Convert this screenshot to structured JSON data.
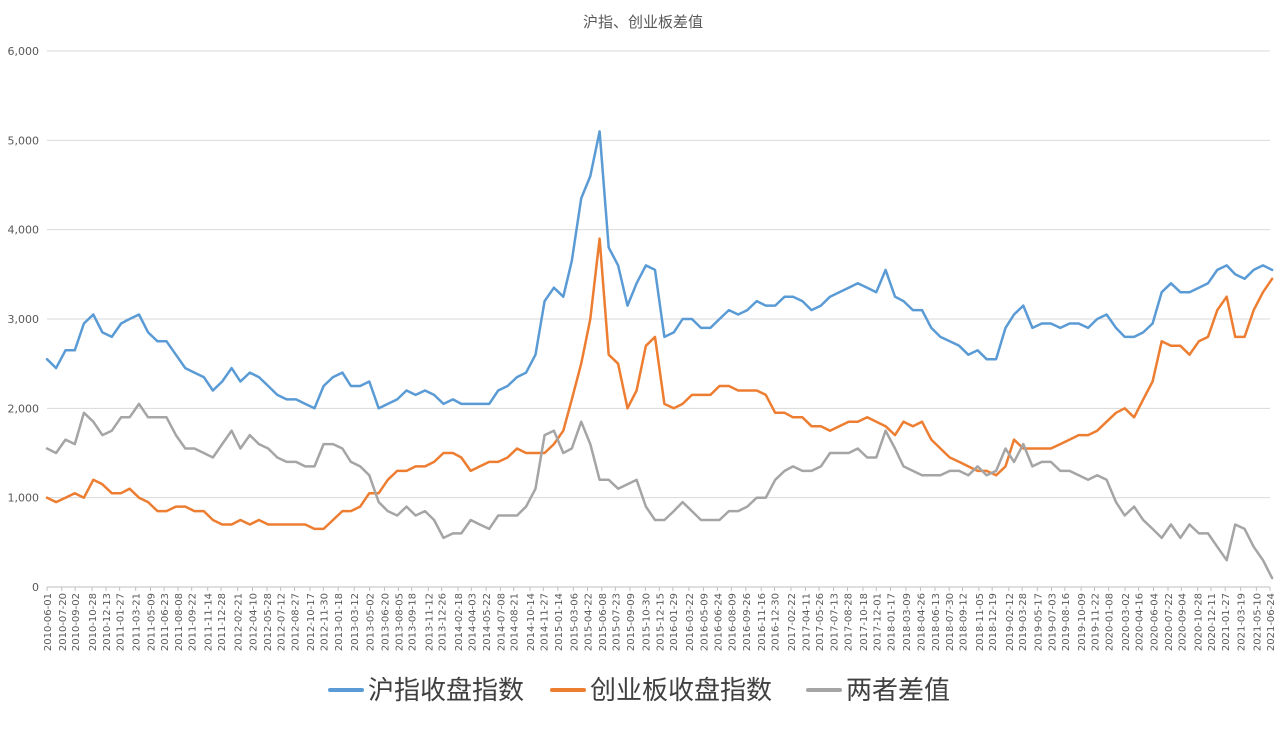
{
  "chart_data": {
    "type": "line",
    "title": "沪指、创业板差值",
    "xlabel": "",
    "ylabel": "",
    "ylim": [
      0,
      6000
    ],
    "yticks": [
      0,
      1000,
      2000,
      3000,
      4000,
      5000,
      6000
    ],
    "ytick_labels": [
      "0",
      "1,000",
      "2,000",
      "3,000",
      "4,000",
      "5,000",
      "6,000"
    ],
    "grid": true,
    "legend_position": "bottom",
    "x_tick_labels": [
      "2010-06-01",
      "2010-07-20",
      "2010-09-02",
      "2010-10-28",
      "2010-12-13",
      "2011-01-27",
      "2011-03-21",
      "2011-05-09",
      "2011-06-23",
      "2011-08-08",
      "2011-09-22",
      "2011-11-14",
      "2011-12-28",
      "2012-02-21",
      "2012-04-10",
      "2012-05-28",
      "2012-07-12",
      "2012-08-27",
      "2012-10-17",
      "2012-11-30",
      "2013-01-18",
      "2013-03-12",
      "2013-05-02",
      "2013-06-20",
      "2013-08-05",
      "2013-09-18",
      "2013-11-12",
      "2013-12-26",
      "2014-02-18",
      "2014-04-03",
      "2014-05-22",
      "2014-07-08",
      "2014-08-21",
      "2014-10-14",
      "2014-11-27",
      "2015-01-14",
      "2015-03-06",
      "2015-04-22",
      "2015-06-08",
      "2015-07-23",
      "2015-09-09",
      "2015-10-30",
      "2015-12-15",
      "2016-01-29",
      "2016-03-22",
      "2016-05-09",
      "2016-06-24",
      "2016-08-09",
      "2016-09-26",
      "2016-11-16",
      "2016-12-30",
      "2017-02-22",
      "2017-04-11",
      "2017-05-26",
      "2017-07-13",
      "2017-08-28",
      "2017-10-18",
      "2017-12-01",
      "2018-01-17",
      "2018-03-09",
      "2018-04-26",
      "2018-06-13",
      "2018-07-30",
      "2018-09-12",
      "2018-11-05",
      "2018-12-19",
      "2019-02-12",
      "2019-03-28",
      "2019-05-17",
      "2019-07-03",
      "2019-08-16",
      "2019-10-09",
      "2019-11-22",
      "2020-01-08",
      "2020-03-02",
      "2020-04-16",
      "2020-06-04",
      "2020-07-22",
      "2020-09-04",
      "2020-10-28",
      "2020-12-11",
      "2021-01-27",
      "2021-03-19",
      "2021-05-10",
      "2021-06-24"
    ],
    "series": [
      {
        "name": "沪指收盘指数",
        "color": "#5B9BD5",
        "x": [
          "2010-06-01",
          "2010-07-01",
          "2010-08-01",
          "2010-09-01",
          "2010-10-01",
          "2010-11-01",
          "2010-12-01",
          "2011-01-01",
          "2011-02-01",
          "2011-03-01",
          "2011-04-01",
          "2011-05-01",
          "2011-06-01",
          "2011-07-01",
          "2011-08-01",
          "2011-09-01",
          "2011-10-01",
          "2011-11-01",
          "2011-12-01",
          "2012-01-01",
          "2012-02-01",
          "2012-03-01",
          "2012-04-01",
          "2012-05-01",
          "2012-06-01",
          "2012-07-01",
          "2012-08-01",
          "2012-09-01",
          "2012-10-01",
          "2012-11-01",
          "2012-12-01",
          "2013-01-01",
          "2013-02-01",
          "2013-03-01",
          "2013-04-01",
          "2013-05-01",
          "2013-06-01",
          "2013-07-01",
          "2013-08-01",
          "2013-09-01",
          "2013-10-01",
          "2013-11-01",
          "2013-12-01",
          "2014-01-01",
          "2014-02-01",
          "2014-03-01",
          "2014-04-01",
          "2014-05-01",
          "2014-06-01",
          "2014-07-01",
          "2014-08-01",
          "2014-09-01",
          "2014-10-01",
          "2014-11-01",
          "2014-12-01",
          "2015-01-01",
          "2015-02-01",
          "2015-03-01",
          "2015-04-01",
          "2015-05-01",
          "2015-06-01",
          "2015-07-01",
          "2015-08-01",
          "2015-09-01",
          "2015-10-01",
          "2015-11-01",
          "2015-12-01",
          "2016-01-01",
          "2016-02-01",
          "2016-03-01",
          "2016-04-01",
          "2016-05-01",
          "2016-06-01",
          "2016-07-01",
          "2016-08-01",
          "2016-09-01",
          "2016-10-01",
          "2016-11-01",
          "2016-12-01",
          "2017-01-01",
          "2017-02-01",
          "2017-03-01",
          "2017-04-01",
          "2017-05-01",
          "2017-06-01",
          "2017-07-01",
          "2017-08-01",
          "2017-09-01",
          "2017-10-01",
          "2017-11-01",
          "2017-12-01",
          "2018-01-01",
          "2018-02-01",
          "2018-03-01",
          "2018-04-01",
          "2018-05-01",
          "2018-06-01",
          "2018-07-01",
          "2018-08-01",
          "2018-09-01",
          "2018-10-01",
          "2018-11-01",
          "2018-12-01",
          "2019-01-01",
          "2019-02-01",
          "2019-03-01",
          "2019-04-01",
          "2019-05-01",
          "2019-06-01",
          "2019-07-01",
          "2019-08-01",
          "2019-09-01",
          "2019-10-01",
          "2019-11-01",
          "2019-12-01",
          "2020-01-01",
          "2020-02-01",
          "2020-03-01",
          "2020-04-01",
          "2020-05-01",
          "2020-06-01",
          "2020-07-01",
          "2020-08-01",
          "2020-09-01",
          "2020-10-01",
          "2020-11-01",
          "2020-12-01",
          "2021-01-01",
          "2021-02-01",
          "2021-03-01",
          "2021-04-01",
          "2021-05-01",
          "2021-06-01",
          "2021-07-01"
        ],
        "values": [
          2550,
          2450,
          2650,
          2650,
          2950,
          3050,
          2850,
          2800,
          2950,
          3000,
          3050,
          2850,
          2750,
          2750,
          2600,
          2450,
          2400,
          2350,
          2200,
          2300,
          2450,
          2300,
          2400,
          2350,
          2250,
          2150,
          2100,
          2100,
          2050,
          2000,
          2250,
          2350,
          2400,
          2250,
          2250,
          2300,
          2000,
          2050,
          2100,
          2200,
          2150,
          2200,
          2150,
          2050,
          2100,
          2050,
          2050,
          2050,
          2050,
          2200,
          2250,
          2350,
          2400,
          2600,
          3200,
          3350,
          3250,
          3650,
          4350,
          4600,
          5100,
          3800,
          3600,
          3150,
          3400,
          3600,
          3550,
          2800,
          2850,
          3000,
          3000,
          2900,
          2900,
          3000,
          3100,
          3050,
          3100,
          3200,
          3150,
          3150,
          3250,
          3250,
          3200,
          3100,
          3150,
          3250,
          3300,
          3350,
          3400,
          3350,
          3300,
          3550,
          3250,
          3200,
          3100,
          3100,
          2900,
          2800,
          2750,
          2700,
          2600,
          2650,
          2550,
          2550,
          2900,
          3050,
          3150,
          2900,
          2950,
          2950,
          2900,
          2950,
          2950,
          2900,
          3000,
          3050,
          2900,
          2800,
          2800,
          2850,
          2950,
          3300,
          3400,
          3300,
          3300,
          3350,
          3400,
          3550,
          3600,
          3500,
          3450,
          3550,
          3600,
          3550
        ]
      },
      {
        "name": "创业板收盘指数",
        "color": "#ED7D31",
        "x": [
          "2010-06-01",
          "2010-07-01",
          "2010-08-01",
          "2010-09-01",
          "2010-10-01",
          "2010-11-01",
          "2010-12-01",
          "2011-01-01",
          "2011-02-01",
          "2011-03-01",
          "2011-04-01",
          "2011-05-01",
          "2011-06-01",
          "2011-07-01",
          "2011-08-01",
          "2011-09-01",
          "2011-10-01",
          "2011-11-01",
          "2011-12-01",
          "2012-01-01",
          "2012-02-01",
          "2012-03-01",
          "2012-04-01",
          "2012-05-01",
          "2012-06-01",
          "2012-07-01",
          "2012-08-01",
          "2012-09-01",
          "2012-10-01",
          "2012-11-01",
          "2012-12-01",
          "2013-01-01",
          "2013-02-01",
          "2013-03-01",
          "2013-04-01",
          "2013-05-01",
          "2013-06-01",
          "2013-07-01",
          "2013-08-01",
          "2013-09-01",
          "2013-10-01",
          "2013-11-01",
          "2013-12-01",
          "2014-01-01",
          "2014-02-01",
          "2014-03-01",
          "2014-04-01",
          "2014-05-01",
          "2014-06-01",
          "2014-07-01",
          "2014-08-01",
          "2014-09-01",
          "2014-10-01",
          "2014-11-01",
          "2014-12-01",
          "2015-01-01",
          "2015-02-01",
          "2015-03-01",
          "2015-04-01",
          "2015-05-01",
          "2015-06-01",
          "2015-07-01",
          "2015-08-01",
          "2015-09-01",
          "2015-10-01",
          "2015-11-01",
          "2015-12-01",
          "2016-01-01",
          "2016-02-01",
          "2016-03-01",
          "2016-04-01",
          "2016-05-01",
          "2016-06-01",
          "2016-07-01",
          "2016-08-01",
          "2016-09-01",
          "2016-10-01",
          "2016-11-01",
          "2016-12-01",
          "2017-01-01",
          "2017-02-01",
          "2017-03-01",
          "2017-04-01",
          "2017-05-01",
          "2017-06-01",
          "2017-07-01",
          "2017-08-01",
          "2017-09-01",
          "2017-10-01",
          "2017-11-01",
          "2017-12-01",
          "2018-01-01",
          "2018-02-01",
          "2018-03-01",
          "2018-04-01",
          "2018-05-01",
          "2018-06-01",
          "2018-07-01",
          "2018-08-01",
          "2018-09-01",
          "2018-10-01",
          "2018-11-01",
          "2018-12-01",
          "2019-01-01",
          "2019-02-01",
          "2019-03-01",
          "2019-04-01",
          "2019-05-01",
          "2019-06-01",
          "2019-07-01",
          "2019-08-01",
          "2019-09-01",
          "2019-10-01",
          "2019-11-01",
          "2019-12-01",
          "2020-01-01",
          "2020-02-01",
          "2020-03-01",
          "2020-04-01",
          "2020-05-01",
          "2020-06-01",
          "2020-07-01",
          "2020-08-01",
          "2020-09-01",
          "2020-10-01",
          "2020-11-01",
          "2020-12-01",
          "2021-01-01",
          "2021-02-01",
          "2021-03-01",
          "2021-04-01",
          "2021-05-01",
          "2021-06-01",
          "2021-07-01"
        ],
        "values": [
          1000,
          950,
          1000,
          1050,
          1000,
          1200,
          1150,
          1050,
          1050,
          1100,
          1000,
          950,
          850,
          850,
          900,
          900,
          850,
          850,
          750,
          700,
          700,
          750,
          700,
          750,
          700,
          700,
          700,
          700,
          700,
          650,
          650,
          750,
          850,
          850,
          900,
          1050,
          1050,
          1200,
          1300,
          1300,
          1350,
          1350,
          1400,
          1500,
          1500,
          1450,
          1300,
          1350,
          1400,
          1400,
          1450,
          1550,
          1500,
          1500,
          1500,
          1600,
          1750,
          2100,
          2500,
          3000,
          3900,
          2600,
          2500,
          2000,
          2200,
          2700,
          2800,
          2050,
          2000,
          2050,
          2150,
          2150,
          2150,
          2250,
          2250,
          2200,
          2200,
          2200,
          2150,
          1950,
          1950,
          1900,
          1900,
          1800,
          1800,
          1750,
          1800,
          1850,
          1850,
          1900,
          1850,
          1800,
          1700,
          1850,
          1800,
          1850,
          1650,
          1550,
          1450,
          1400,
          1350,
          1300,
          1300,
          1250,
          1350,
          1650,
          1550,
          1550,
          1550,
          1550,
          1600,
          1650,
          1700,
          1700,
          1750,
          1850,
          1950,
          2000,
          1900,
          2100,
          2300,
          2750,
          2700,
          2700,
          2600,
          2750,
          2800,
          3100,
          3250,
          2800,
          2800,
          3100,
          3300,
          3450
        ]
      },
      {
        "name": "两者差值",
        "color": "#A5A5A5",
        "x": [
          "2010-06-01",
          "2010-07-01",
          "2010-08-01",
          "2010-09-01",
          "2010-10-01",
          "2010-11-01",
          "2010-12-01",
          "2011-01-01",
          "2011-02-01",
          "2011-03-01",
          "2011-04-01",
          "2011-05-01",
          "2011-06-01",
          "2011-07-01",
          "2011-08-01",
          "2011-09-01",
          "2011-10-01",
          "2011-11-01",
          "2011-12-01",
          "2012-01-01",
          "2012-02-01",
          "2012-03-01",
          "2012-04-01",
          "2012-05-01",
          "2012-06-01",
          "2012-07-01",
          "2012-08-01",
          "2012-09-01",
          "2012-10-01",
          "2012-11-01",
          "2012-12-01",
          "2013-01-01",
          "2013-02-01",
          "2013-03-01",
          "2013-04-01",
          "2013-05-01",
          "2013-06-01",
          "2013-07-01",
          "2013-08-01",
          "2013-09-01",
          "2013-10-01",
          "2013-11-01",
          "2013-12-01",
          "2014-01-01",
          "2014-02-01",
          "2014-03-01",
          "2014-04-01",
          "2014-05-01",
          "2014-06-01",
          "2014-07-01",
          "2014-08-01",
          "2014-09-01",
          "2014-10-01",
          "2014-11-01",
          "2014-12-01",
          "2015-01-01",
          "2015-02-01",
          "2015-03-01",
          "2015-04-01",
          "2015-05-01",
          "2015-06-01",
          "2015-07-01",
          "2015-08-01",
          "2015-09-01",
          "2015-10-01",
          "2015-11-01",
          "2015-12-01",
          "2016-01-01",
          "2016-02-01",
          "2016-03-01",
          "2016-04-01",
          "2016-05-01",
          "2016-06-01",
          "2016-07-01",
          "2016-08-01",
          "2016-09-01",
          "2016-10-01",
          "2016-11-01",
          "2016-12-01",
          "2017-01-01",
          "2017-02-01",
          "2017-03-01",
          "2017-04-01",
          "2017-05-01",
          "2017-06-01",
          "2017-07-01",
          "2017-08-01",
          "2017-09-01",
          "2017-10-01",
          "2017-11-01",
          "2017-12-01",
          "2018-01-01",
          "2018-02-01",
          "2018-03-01",
          "2018-04-01",
          "2018-05-01",
          "2018-06-01",
          "2018-07-01",
          "2018-08-01",
          "2018-09-01",
          "2018-10-01",
          "2018-11-01",
          "2018-12-01",
          "2019-01-01",
          "2019-02-01",
          "2019-03-01",
          "2019-04-01",
          "2019-05-01",
          "2019-06-01",
          "2019-07-01",
          "2019-08-01",
          "2019-09-01",
          "2019-10-01",
          "2019-11-01",
          "2019-12-01",
          "2020-01-01",
          "2020-02-01",
          "2020-03-01",
          "2020-04-01",
          "2020-05-01",
          "2020-06-01",
          "2020-07-01",
          "2020-08-01",
          "2020-09-01",
          "2020-10-01",
          "2020-11-01",
          "2020-12-01",
          "2021-01-01",
          "2021-02-01",
          "2021-03-01",
          "2021-04-01",
          "2021-05-01",
          "2021-06-01",
          "2021-07-01"
        ],
        "values": [
          1550,
          1500,
          1650,
          1600,
          1950,
          1850,
          1700,
          1750,
          1900,
          1900,
          2050,
          1900,
          1900,
          1900,
          1700,
          1550,
          1550,
          1500,
          1450,
          1600,
          1750,
          1550,
          1700,
          1600,
          1550,
          1450,
          1400,
          1400,
          1350,
          1350,
          1600,
          1600,
          1550,
          1400,
          1350,
          1250,
          950,
          850,
          800,
          900,
          800,
          850,
          750,
          550,
          600,
          600,
          750,
          700,
          650,
          800,
          800,
          800,
          900,
          1100,
          1700,
          1750,
          1500,
          1550,
          1850,
          1600,
          1200,
          1200,
          1100,
          1150,
          1200,
          900,
          750,
          750,
          850,
          950,
          850,
          750,
          750,
          750,
          850,
          850,
          900,
          1000,
          1000,
          1200,
          1300,
          1350,
          1300,
          1300,
          1350,
          1500,
          1500,
          1500,
          1550,
          1450,
          1450,
          1750,
          1550,
          1350,
          1300,
          1250,
          1250,
          1250,
          1300,
          1300,
          1250,
          1350,
          1250,
          1300,
          1550,
          1400,
          1600,
          1350,
          1400,
          1400,
          1300,
          1300,
          1250,
          1200,
          1250,
          1200,
          950,
          800,
          900,
          750,
          650,
          550,
          700,
          550,
          700,
          600,
          600,
          450,
          300,
          700,
          650,
          450,
          300,
          100
        ]
      }
    ]
  }
}
